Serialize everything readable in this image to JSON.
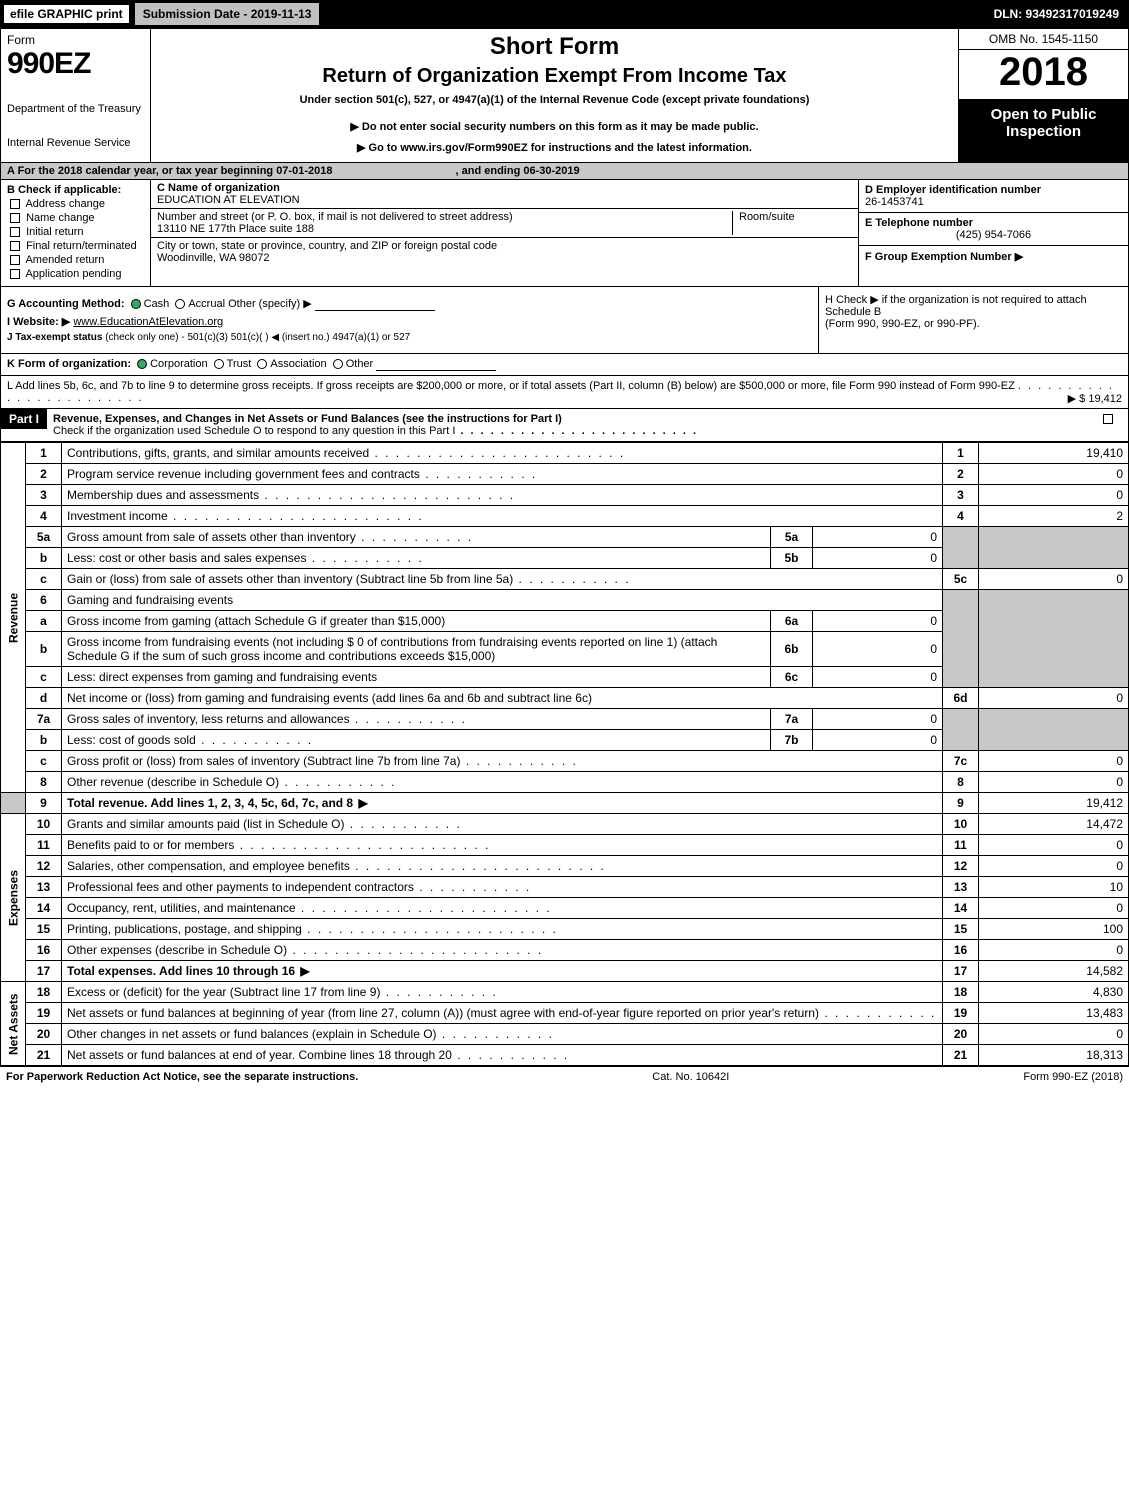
{
  "topbar": {
    "efile": "efile GRAPHIC print",
    "submission": "Submission Date - 2019-11-13",
    "dln": "DLN: 93492317019249"
  },
  "header": {
    "form_word": "Form",
    "form_code": "990EZ",
    "dept1": "Department of the Treasury",
    "dept2": "Internal Revenue Service",
    "short_form": "Short Form",
    "return_title": "Return of Organization Exempt From Income Tax",
    "under_section": "Under section 501(c), 527, or 4947(a)(1) of the Internal Revenue Code (except private foundations)",
    "do_not": "▶ Do not enter social security numbers on this form as it may be made public.",
    "goto": "▶ Go to www.irs.gov/Form990EZ for instructions and the latest information.",
    "omb": "OMB No. 1545-1150",
    "year": "2018",
    "open": "Open to Public Inspection"
  },
  "row_a": {
    "text": "A  For the 2018 calendar year, or tax year beginning 07-01-2018",
    "ending": ", and ending 06-30-2019"
  },
  "col_b": {
    "title": "B  Check if applicable:",
    "items": [
      "Address change",
      "Name change",
      "Initial return",
      "Final return/terminated",
      "Amended return",
      "Application pending"
    ]
  },
  "col_c": {
    "c_label": "C Name of organization",
    "c_value": "EDUCATION AT ELEVATION",
    "addr_label": "Number and street (or P. O. box, if mail is not delivered to street address)",
    "addr_value": "13110 NE 177th Place suite 188",
    "room_label": "Room/suite",
    "city_label": "City or town, state or province, country, and ZIP or foreign postal code",
    "city_value": "Woodinville, WA  98072"
  },
  "col_d": {
    "d_label": "D Employer identification number",
    "d_value": "26-1453741",
    "e_label": "E Telephone number",
    "e_value": "(425) 954-7066",
    "f_label": "F Group Exemption Number ▶"
  },
  "block_g": {
    "g_label": "G Accounting Method:",
    "g_opts": [
      "Cash",
      "Accrual",
      "Other (specify) ▶"
    ],
    "i_label": "I Website: ▶",
    "i_value": "www.EducationAtElevation.org",
    "j_label": "J Tax-exempt status",
    "j_text": "(check only one) -  501(c)(3)   501(c)(  ) ◀ (insert no.)   4947(a)(1) or   527",
    "h_text1": "H  Check ▶  if the organization is not required to attach Schedule B",
    "h_text2": "(Form 990, 990-EZ, or 990-PF)."
  },
  "row_k": {
    "label": "K Form of organization:",
    "opts": [
      "Corporation",
      "Trust",
      "Association",
      "Other"
    ]
  },
  "row_l": {
    "text": "L Add lines 5b, 6c, and 7b to line 9 to determine gross receipts. If gross receipts are $200,000 or more, or if total assets (Part II, column (B) below) are $500,000 or more, file Form 990 instead of Form 990-EZ",
    "arrow_amt": "▶ $ 19,412"
  },
  "part1": {
    "label": "Part I",
    "title": "Revenue, Expenses, and Changes in Net Assets or Fund Balances (see the instructions for Part I)",
    "check_text": "Check if the organization used Schedule O to respond to any question in this Part I"
  },
  "side_labels": {
    "revenue": "Revenue",
    "expenses": "Expenses",
    "netassets": "Net Assets"
  },
  "lines": {
    "r1": {
      "n": "1",
      "d": "Contributions, gifts, grants, and similar amounts received",
      "ln": "1",
      "amt": "19,410"
    },
    "r2": {
      "n": "2",
      "d": "Program service revenue including government fees and contracts",
      "ln": "2",
      "amt": "0"
    },
    "r3": {
      "n": "3",
      "d": "Membership dues and assessments",
      "ln": "3",
      "amt": "0"
    },
    "r4": {
      "n": "4",
      "d": "Investment income",
      "ln": "4",
      "amt": "2"
    },
    "r5a": {
      "n": "5a",
      "d": "Gross amount from sale of assets other than inventory",
      "sn": "5a",
      "sv": "0"
    },
    "r5b": {
      "n": "b",
      "d": "Less: cost or other basis and sales expenses",
      "sn": "5b",
      "sv": "0"
    },
    "r5c": {
      "n": "c",
      "d": "Gain or (loss) from sale of assets other than inventory (Subtract line 5b from line 5a)",
      "ln": "5c",
      "amt": "0"
    },
    "r6": {
      "n": "6",
      "d": "Gaming and fundraising events"
    },
    "r6a": {
      "n": "a",
      "d": "Gross income from gaming (attach Schedule G if greater than $15,000)",
      "sn": "6a",
      "sv": "0"
    },
    "r6b": {
      "n": "b",
      "d": "Gross income from fundraising events (not including $  0             of contributions from fundraising events reported on line 1) (attach Schedule G if the sum of such gross income and contributions exceeds $15,000)",
      "sn": "6b",
      "sv": "0"
    },
    "r6c": {
      "n": "c",
      "d": "Less: direct expenses from gaming and fundraising events",
      "sn": "6c",
      "sv": "0"
    },
    "r6d": {
      "n": "d",
      "d": "Net income or (loss) from gaming and fundraising events (add lines 6a and 6b and subtract line 6c)",
      "ln": "6d",
      "amt": "0"
    },
    "r7a": {
      "n": "7a",
      "d": "Gross sales of inventory, less returns and allowances",
      "sn": "7a",
      "sv": "0"
    },
    "r7b": {
      "n": "b",
      "d": "Less: cost of goods sold",
      "sn": "7b",
      "sv": "0"
    },
    "r7c": {
      "n": "c",
      "d": "Gross profit or (loss) from sales of inventory (Subtract line 7b from line 7a)",
      "ln": "7c",
      "amt": "0"
    },
    "r8": {
      "n": "8",
      "d": "Other revenue (describe in Schedule O)",
      "ln": "8",
      "amt": "0"
    },
    "r9": {
      "n": "9",
      "d": "Total revenue. Add lines 1, 2, 3, 4, 5c, 6d, 7c, and 8",
      "ln": "9",
      "amt": "19,412"
    },
    "r10": {
      "n": "10",
      "d": "Grants and similar amounts paid (list in Schedule O)",
      "ln": "10",
      "amt": "14,472"
    },
    "r11": {
      "n": "11",
      "d": "Benefits paid to or for members",
      "ln": "11",
      "amt": "0"
    },
    "r12": {
      "n": "12",
      "d": "Salaries, other compensation, and employee benefits",
      "ln": "12",
      "amt": "0"
    },
    "r13": {
      "n": "13",
      "d": "Professional fees and other payments to independent contractors",
      "ln": "13",
      "amt": "10"
    },
    "r14": {
      "n": "14",
      "d": "Occupancy, rent, utilities, and maintenance",
      "ln": "14",
      "amt": "0"
    },
    "r15": {
      "n": "15",
      "d": "Printing, publications, postage, and shipping",
      "ln": "15",
      "amt": "100"
    },
    "r16": {
      "n": "16",
      "d": "Other expenses (describe in Schedule O)",
      "ln": "16",
      "amt": "0"
    },
    "r17": {
      "n": "17",
      "d": "Total expenses. Add lines 10 through 16",
      "ln": "17",
      "amt": "14,582"
    },
    "r18": {
      "n": "18",
      "d": "Excess or (deficit) for the year (Subtract line 17 from line 9)",
      "ln": "18",
      "amt": "4,830"
    },
    "r19": {
      "n": "19",
      "d": "Net assets or fund balances at beginning of year (from line 27, column (A)) (must agree with end-of-year figure reported on prior year's return)",
      "ln": "19",
      "amt": "13,483"
    },
    "r20": {
      "n": "20",
      "d": "Other changes in net assets or fund balances (explain in Schedule O)",
      "ln": "20",
      "amt": "0"
    },
    "r21": {
      "n": "21",
      "d": "Net assets or fund balances at end of year. Combine lines 18 through 20",
      "ln": "21",
      "amt": "18,313"
    }
  },
  "footer": {
    "left": "For Paperwork Reduction Act Notice, see the separate instructions.",
    "mid": "Cat. No. 10642I",
    "right": "Form 990-EZ (2018)"
  }
}
